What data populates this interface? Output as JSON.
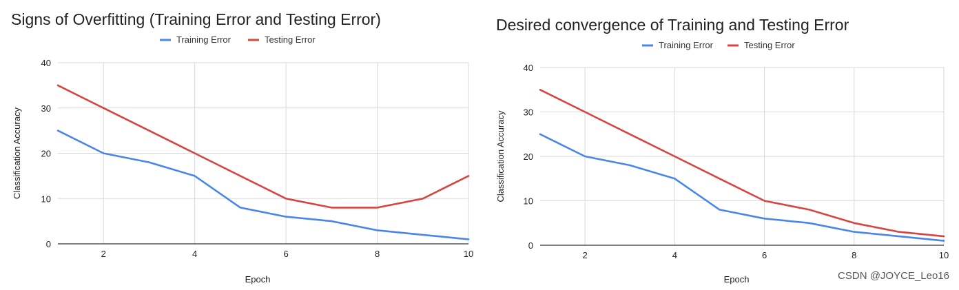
{
  "colors": {
    "training": "#4a86e8",
    "testing": "#d64541",
    "grid": "#d9d9d9",
    "axis": "#333333"
  },
  "watermark": "CSDN @JOYCE_Leo16",
  "chart_data": [
    {
      "type": "line",
      "title": "Signs of Overfitting (Training Error and Testing Error)",
      "xlabel": "Epoch",
      "ylabel": "Classification Accuracy",
      "xlim": [
        1,
        10
      ],
      "ylim": [
        0,
        40
      ],
      "xticks": [
        2,
        4,
        6,
        8,
        10
      ],
      "yticks": [
        0,
        10,
        20,
        30,
        40
      ],
      "grid": true,
      "legend": "top-center",
      "x": [
        1,
        2,
        3,
        4,
        5,
        6,
        7,
        8,
        9,
        10
      ],
      "series": [
        {
          "name": "Training Error",
          "values": [
            25,
            20,
            18,
            15,
            8,
            6,
            5,
            3,
            2,
            1
          ]
        },
        {
          "name": "Testing Error",
          "values": [
            35,
            30,
            25,
            20,
            15,
            10,
            8,
            8,
            10,
            15
          ]
        }
      ]
    },
    {
      "type": "line",
      "title": "Desired convergence of Training and Testing Error",
      "xlabel": "Epoch",
      "ylabel": "Classification Accuracy",
      "xlim": [
        1,
        10
      ],
      "ylim": [
        0,
        40
      ],
      "xticks": [
        2,
        4,
        6,
        8,
        10
      ],
      "yticks": [
        0,
        10,
        20,
        30,
        40
      ],
      "grid": true,
      "legend": "top-center",
      "x": [
        1,
        2,
        3,
        4,
        5,
        6,
        7,
        8,
        9,
        10
      ],
      "series": [
        {
          "name": "Training Error",
          "values": [
            25,
            20,
            18,
            15,
            8,
            6,
            5,
            3,
            2,
            1
          ]
        },
        {
          "name": "Testing Error",
          "values": [
            35,
            30,
            25,
            20,
            15,
            10,
            8,
            5,
            3,
            2
          ]
        }
      ]
    }
  ]
}
